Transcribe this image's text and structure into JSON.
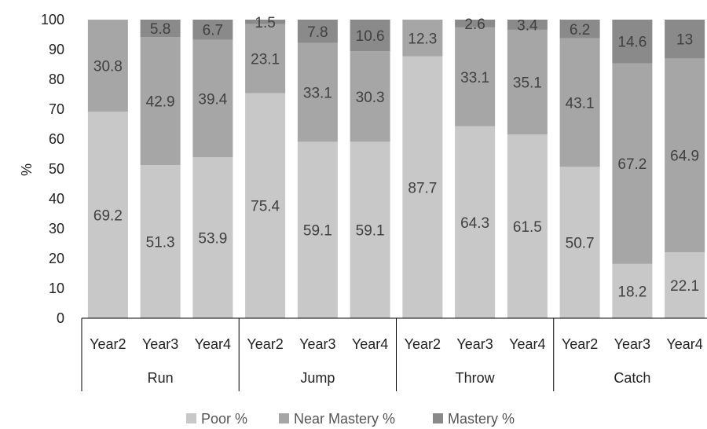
{
  "chart_data": {
    "type": "bar",
    "stacked": true,
    "ylabel": "%",
    "ylim": [
      0,
      100
    ],
    "yticks": [
      0,
      10,
      20,
      30,
      40,
      50,
      60,
      70,
      80,
      90,
      100
    ],
    "groups": [
      "Run",
      "Jump",
      "Throw",
      "Catch"
    ],
    "categories": [
      "Year2",
      "Year3",
      "Year4",
      "Year2",
      "Year3",
      "Year4",
      "Year2",
      "Year3",
      "Year4",
      "Year2",
      "Year3",
      "Year4"
    ],
    "series": [
      {
        "name": "Poor %",
        "color": "#c8c8c8",
        "values": [
          69.2,
          51.3,
          53.9,
          75.4,
          59.1,
          59.1,
          87.7,
          64.3,
          61.5,
          50.7,
          18.2,
          22.1
        ]
      },
      {
        "name": "Near Mastery %",
        "color": "#a6a6a6",
        "values": [
          30.8,
          42.9,
          39.4,
          23.1,
          33.1,
          30.3,
          12.3,
          33.1,
          35.1,
          43.1,
          67.2,
          64.9
        ]
      },
      {
        "name": "Mastery %",
        "color": "#8a8a8a",
        "values": [
          null,
          5.8,
          6.7,
          1.5,
          7.8,
          10.6,
          null,
          2.6,
          3.4,
          6.2,
          14.6,
          13
        ]
      }
    ],
    "legend_position": "bottom",
    "grid": false
  }
}
